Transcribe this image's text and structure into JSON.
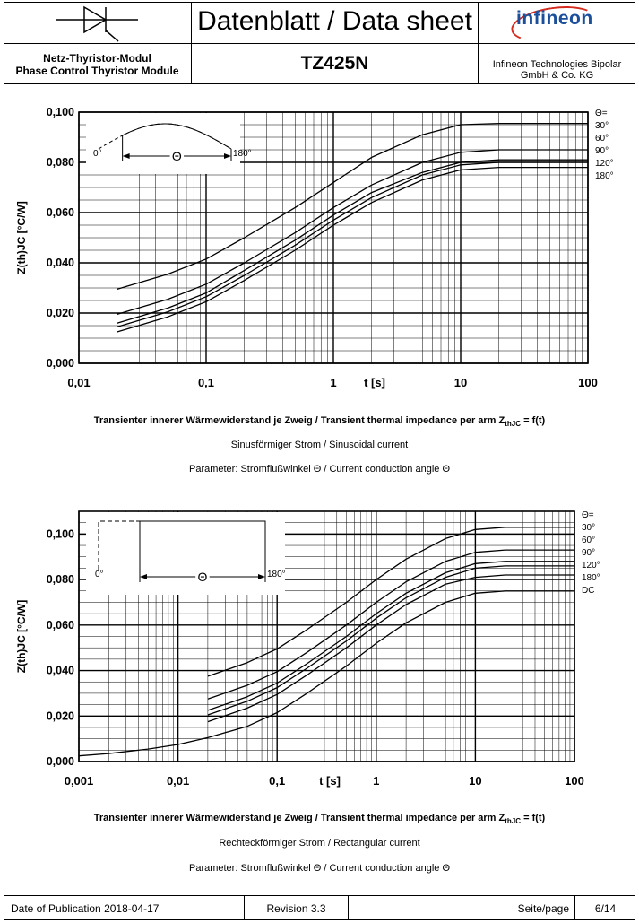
{
  "header": {
    "title": "Datenblatt / Data sheet",
    "logo": "infineon",
    "module_de": "Netz-Thyristor-Modul",
    "module_en": "Phase Control Thyristor Module",
    "part_number": "TZ425N",
    "company_line1": "Infineon Technologies Bipolar",
    "company_line2": "GmbH & Co. KG",
    "symbol_icon": "thyristor-symbol-icon"
  },
  "chart1": {
    "caption_title": "Transienter innerer Wärmewiderstand je Zweig / Transient thermal impedance per arm Z",
    "caption_sub": "thJC",
    "caption_tail": " = f(t)",
    "caption_current": "Sinusförmiger Strom / Sinusoidal current",
    "caption_param": "Parameter: Stromflußwinkel Θ  / Current conduction angle Θ",
    "inset": {
      "label_0": "0°",
      "label_180": "180°",
      "label_theta": "Θ"
    }
  },
  "chart2": {
    "caption_title": "Transienter innerer Wärmewiderstand je Zweig / Transient thermal impedance per arm Z",
    "caption_sub": "thJC",
    "caption_tail": " = f(t)",
    "caption_current": "Rechteckförmiger Strom / Rectangular current",
    "caption_param": "Parameter: Stromflußwinkel Θ  / Current conduction angle Θ",
    "inset": {
      "label_0": "0°",
      "label_180": "180°",
      "label_theta": "Θ"
    }
  },
  "chart_data": [
    {
      "type": "line",
      "xscale": "log",
      "xlim": [
        0.01,
        100
      ],
      "ylim": [
        0,
        0.1
      ],
      "xlabel": "t [s]",
      "ylabel": "Z(th)JC [°C/W]",
      "xticks": [
        "0,01",
        "0,1",
        "1",
        "10",
        "100"
      ],
      "yticks": [
        "0,000",
        "0,020",
        "0,040",
        "0,060",
        "0,080",
        "0,100"
      ],
      "legend_title": "Θ=",
      "legend": [
        "30°",
        "60°",
        "90°",
        "120°",
        "180°"
      ],
      "x": [
        0.02,
        0.05,
        0.1,
        0.2,
        0.5,
        1,
        2,
        5,
        10,
        20,
        50,
        100
      ],
      "series": [
        {
          "name": "30°",
          "values": [
            0.0295,
            0.0355,
            0.0415,
            0.05,
            0.062,
            0.072,
            0.082,
            0.091,
            0.095,
            0.0955,
            0.0955,
            0.0955
          ]
        },
        {
          "name": "60°",
          "values": [
            0.0195,
            0.0255,
            0.0315,
            0.04,
            0.052,
            0.062,
            0.071,
            0.08,
            0.084,
            0.085,
            0.085,
            0.085
          ]
        },
        {
          "name": "90°",
          "values": [
            0.016,
            0.022,
            0.028,
            0.037,
            0.049,
            0.059,
            0.068,
            0.076,
            0.08,
            0.081,
            0.081,
            0.081
          ]
        },
        {
          "name": "120°",
          "values": [
            0.0145,
            0.0205,
            0.0265,
            0.035,
            0.047,
            0.057,
            0.066,
            0.075,
            0.079,
            0.08,
            0.08,
            0.08
          ]
        },
        {
          "name": "180°",
          "values": [
            0.0125,
            0.0185,
            0.0245,
            0.033,
            0.045,
            0.055,
            0.064,
            0.073,
            0.077,
            0.078,
            0.078,
            0.078
          ]
        }
      ]
    },
    {
      "type": "line",
      "xscale": "log",
      "xlim": [
        0.001,
        100
      ],
      "ylim": [
        0,
        0.11
      ],
      "xlabel": "t [s]",
      "ylabel": "Z(th)JC [°C/W]",
      "xticks": [
        "0,001",
        "0,01",
        "0,1",
        "1",
        "10",
        "100"
      ],
      "yticks": [
        "0,000",
        "0,020",
        "0,040",
        "0,060",
        "0,080",
        "0,100"
      ],
      "legend_title": "Θ=",
      "legend": [
        "30°",
        "60°",
        "90°",
        "120°",
        "180°",
        "DC"
      ],
      "series": [
        {
          "name": "30°",
          "x": [
            0.02,
            0.05,
            0.1,
            0.2,
            0.5,
            1,
            2,
            5,
            10,
            20,
            50,
            100
          ],
          "values": [
            0.0375,
            0.0435,
            0.0495,
            0.058,
            0.07,
            0.08,
            0.089,
            0.098,
            0.102,
            0.103,
            0.103,
            0.103
          ]
        },
        {
          "name": "60°",
          "x": [
            0.02,
            0.05,
            0.1,
            0.2,
            0.5,
            1,
            2,
            5,
            10,
            20,
            50,
            100
          ],
          "values": [
            0.0275,
            0.0335,
            0.0395,
            0.048,
            0.06,
            0.07,
            0.079,
            0.088,
            0.092,
            0.093,
            0.093,
            0.093
          ]
        },
        {
          "name": "90°",
          "x": [
            0.02,
            0.05,
            0.1,
            0.2,
            0.5,
            1,
            2,
            5,
            10,
            20,
            50,
            100
          ],
          "values": [
            0.0225,
            0.0285,
            0.0345,
            0.043,
            0.055,
            0.065,
            0.074,
            0.083,
            0.087,
            0.088,
            0.088,
            0.088
          ]
        },
        {
          "name": "120°",
          "x": [
            0.02,
            0.05,
            0.1,
            0.2,
            0.5,
            1,
            2,
            5,
            10,
            20,
            50,
            100
          ],
          "values": [
            0.0205,
            0.0265,
            0.0325,
            0.041,
            0.053,
            0.063,
            0.072,
            0.081,
            0.085,
            0.086,
            0.086,
            0.086
          ]
        },
        {
          "name": "180°",
          "x": [
            0.02,
            0.05,
            0.1,
            0.2,
            0.5,
            1,
            2,
            5,
            10,
            20,
            50,
            100
          ],
          "values": [
            0.0175,
            0.0235,
            0.0295,
            0.038,
            0.05,
            0.06,
            0.069,
            0.078,
            0.081,
            0.082,
            0.082,
            0.082
          ]
        },
        {
          "name": "DC",
          "x": [
            0.001,
            0.002,
            0.005,
            0.01,
            0.02,
            0.05,
            0.1,
            0.2,
            0.5,
            1,
            2,
            5,
            10,
            20,
            50,
            100
          ],
          "values": [
            0.0025,
            0.0035,
            0.0055,
            0.0075,
            0.0105,
            0.0155,
            0.0215,
            0.03,
            0.042,
            0.052,
            0.061,
            0.07,
            0.074,
            0.075,
            0.075,
            0.075
          ]
        }
      ]
    }
  ],
  "footer": {
    "date_of_publication": "Date of Publication 2018-04-17",
    "revision": "Revision 3.3",
    "page_label": "Seite/page",
    "page_number": "6/14"
  }
}
